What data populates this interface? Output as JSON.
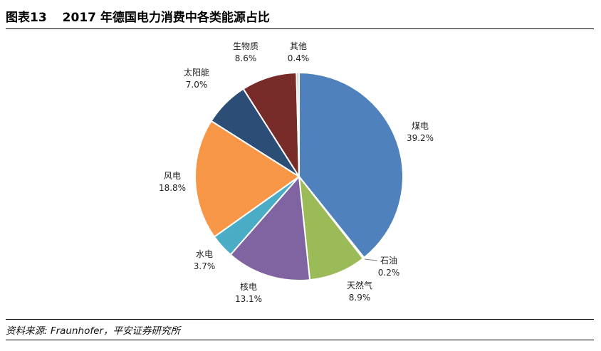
{
  "header": {
    "figure_label": "图表13",
    "title": "2017 年德国电力消费中各类能源占比"
  },
  "footer": {
    "source": "资料来源: Fraunhofer，平安证券研究所"
  },
  "chart_data": {
    "type": "pie",
    "start_angle_deg": 0,
    "direction": "clockwise",
    "slice_border_color": "#ffffff",
    "slices": [
      {
        "label": "煤电",
        "value": 39.2,
        "value_label": "39.2%",
        "color": "#4F81BD"
      },
      {
        "label": "石油",
        "value": 0.2,
        "value_label": "0.2%",
        "color": "#4BACC6"
      },
      {
        "label": "天然气",
        "value": 8.9,
        "value_label": "8.9%",
        "color": "#9BBB59"
      },
      {
        "label": "核电",
        "value": 13.1,
        "value_label": "13.1%",
        "color": "#8064A2"
      },
      {
        "label": "水电",
        "value": 3.7,
        "value_label": "3.7%",
        "color": "#4BACC6"
      },
      {
        "label": "风电",
        "value": 18.8,
        "value_label": "18.8%",
        "color": "#F79646"
      },
      {
        "label": "太阳能",
        "value": 7.0,
        "value_label": "7.0%",
        "color": "#2C4D75"
      },
      {
        "label": "生物质",
        "value": 8.6,
        "value_label": "8.6%",
        "color": "#772C2A"
      },
      {
        "label": "其他",
        "value": 0.4,
        "value_label": "0.4%",
        "color": "#C0C0C0"
      }
    ]
  }
}
